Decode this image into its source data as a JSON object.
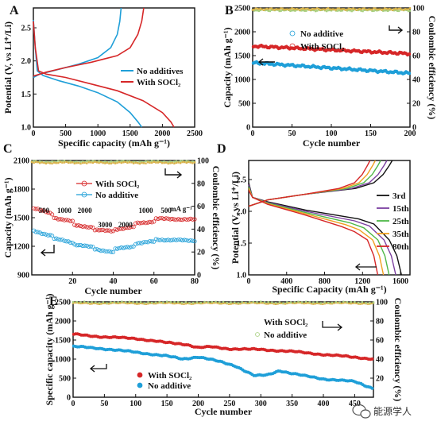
{
  "colors": {
    "red": "#d62728",
    "blue": "#1f9fd8",
    "eff": "#d9b24a",
    "eff_green": "#8ccf5a",
    "black": "#111111",
    "purple": "#7b3fa0",
    "green": "#4fb848",
    "orange": "#f0a020"
  },
  "watermark": {
    "icon": "wechat-icon",
    "text": "能源学人"
  },
  "chart_data": [
    {
      "panel": "A",
      "type": "line",
      "xlabel": "Specific capacity (mAh g⁻¹)",
      "ylabel": "Potential (V, vs Li⁺/Li)",
      "xlim": [
        0,
        2500
      ],
      "ylim": [
        1.0,
        2.8
      ],
      "xticks": [
        0,
        500,
        1000,
        1500,
        2000,
        2500
      ],
      "yticks": [
        1.0,
        1.5,
        2.0,
        2.5
      ],
      "legend": "right",
      "series": [
        {
          "name": "No additives",
          "color": "#1f9fd8",
          "discharge": [
            [
              0,
              2.62
            ],
            [
              30,
              2.2
            ],
            [
              60,
              1.85
            ],
            [
              150,
              1.78
            ],
            [
              400,
              1.7
            ],
            [
              700,
              1.62
            ],
            [
              1000,
              1.52
            ],
            [
              1300,
              1.38
            ],
            [
              1500,
              1.22
            ],
            [
              1620,
              1.08
            ],
            [
              1680,
              1.0
            ]
          ],
          "charge": [
            [
              0,
              1.75
            ],
            [
              100,
              1.8
            ],
            [
              300,
              1.85
            ],
            [
              700,
              1.95
            ],
            [
              1000,
              2.05
            ],
            [
              1200,
              2.2
            ],
            [
              1300,
              2.4
            ],
            [
              1340,
              2.6
            ],
            [
              1360,
              2.8
            ]
          ]
        },
        {
          "name": "With SOCl₂",
          "color": "#d62728",
          "discharge": [
            [
              0,
              2.6
            ],
            [
              30,
              2.2
            ],
            [
              80,
              1.85
            ],
            [
              200,
              1.8
            ],
            [
              500,
              1.75
            ],
            [
              900,
              1.65
            ],
            [
              1300,
              1.55
            ],
            [
              1700,
              1.4
            ],
            [
              2000,
              1.22
            ],
            [
              2130,
              1.08
            ],
            [
              2180,
              1.0
            ]
          ],
          "charge": [
            [
              0,
              1.77
            ],
            [
              200,
              1.83
            ],
            [
              500,
              1.9
            ],
            [
              900,
              1.98
            ],
            [
              1300,
              2.08
            ],
            [
              1500,
              2.2
            ],
            [
              1620,
              2.4
            ],
            [
              1680,
              2.6
            ],
            [
              1710,
              2.8
            ]
          ]
        }
      ]
    },
    {
      "panel": "B",
      "type": "scatter",
      "xlabel": "Cycle number",
      "ylabel": "Capacity (mAh g⁻¹)",
      "ylabel_right": "Coulombic efficiency (%)",
      "xlim": [
        0,
        200
      ],
      "ylim": [
        0,
        2500
      ],
      "ylim_right": [
        0,
        100
      ],
      "xticks": [
        0,
        50,
        100,
        150,
        200
      ],
      "yticks": [
        0,
        500,
        1000,
        1500,
        2000,
        2500
      ],
      "yticks_right": [
        0,
        20,
        40,
        60,
        80,
        100
      ],
      "legend": "center-right",
      "series": [
        {
          "name": "No additive",
          "color": "#1f9fd8",
          "capacity_start": 1350,
          "capacity_end": 1130,
          "efficiency": 98
        },
        {
          "name": "With SOCl₂",
          "color": "#d62728",
          "capacity_start": 1700,
          "capacity_end": 1540,
          "efficiency": 99
        }
      ]
    },
    {
      "panel": "C",
      "type": "scatter",
      "xlabel": "Cycle number",
      "ylabel": "Capacity (mAh g⁻¹)",
      "ylabel_right": "Coulombic efficiency (%)",
      "xlim": [
        0,
        80
      ],
      "ylim": [
        900,
        2100
      ],
      "ylim_right": [
        0,
        100
      ],
      "xticks": [
        20,
        40,
        60,
        80
      ],
      "yticks": [
        900,
        1200,
        1500,
        1800,
        2100
      ],
      "yticks_right": [
        0,
        20,
        40,
        60,
        80,
        100
      ],
      "legend": "center",
      "rate_unit": "mA g⁻¹",
      "rates": [
        {
          "label": "500",
          "x": 5
        },
        {
          "label": "1000",
          "x": 15
        },
        {
          "label": "2000",
          "x": 25
        },
        {
          "label": "3000",
          "x": 35
        },
        {
          "label": "2000",
          "x": 45
        },
        {
          "label": "1000",
          "x": 55
        },
        {
          "label": "500",
          "x": 65
        }
      ],
      "series": [
        {
          "name": "With SOCl₂",
          "color": "#d62728",
          "values": [
            [
              1,
              1600
            ],
            [
              10,
              1540
            ],
            [
              11,
              1500
            ],
            [
              20,
              1460
            ],
            [
              21,
              1420
            ],
            [
              30,
              1400
            ],
            [
              31,
              1370
            ],
            [
              40,
              1360
            ],
            [
              41,
              1380
            ],
            [
              50,
              1400
            ],
            [
              51,
              1440
            ],
            [
              60,
              1460
            ],
            [
              61,
              1490
            ],
            [
              80,
              1480
            ]
          ]
        },
        {
          "name": "No additive",
          "color": "#1f9fd8",
          "values": [
            [
              1,
              1360
            ],
            [
              10,
              1310
            ],
            [
              11,
              1280
            ],
            [
              20,
              1240
            ],
            [
              21,
              1220
            ],
            [
              30,
              1190
            ],
            [
              31,
              1170
            ],
            [
              40,
              1140
            ],
            [
              41,
              1170
            ],
            [
              50,
              1200
            ],
            [
              51,
              1230
            ],
            [
              60,
              1250
            ],
            [
              61,
              1270
            ],
            [
              80,
              1260
            ]
          ]
        }
      ]
    },
    {
      "panel": "D",
      "type": "line",
      "xlabel": "Specific Capacity (mAh g⁻¹)",
      "ylabel": "Potential (V, vs Li⁺/Li)",
      "xlim": [
        0,
        1700
      ],
      "ylim": [
        1.0,
        2.8
      ],
      "xticks": [
        0,
        400,
        800,
        1200,
        1600
      ],
      "yticks": [
        1.0,
        1.5,
        2.0,
        2.5
      ],
      "legend": "right",
      "series": [
        {
          "name": "3rd",
          "color": "#111111",
          "end": 1610
        },
        {
          "name": "15th",
          "color": "#7b3fa0",
          "end": 1550
        },
        {
          "name": "25th",
          "color": "#4fb848",
          "end": 1480
        },
        {
          "name": "35th",
          "color": "#f0a020",
          "end": 1420
        },
        {
          "name": "80th",
          "color": "#d62728",
          "end": 1360
        }
      ]
    },
    {
      "panel": "E",
      "type": "scatter",
      "xlabel": "Cycle number",
      "ylabel": "Specific capacity (mAh g⁻¹)",
      "ylabel_right": "Coulombic efficiency (%)",
      "xlim": [
        0,
        480
      ],
      "ylim": [
        0,
        2500
      ],
      "ylim_right": [
        0,
        100
      ],
      "xticks": [
        0,
        50,
        100,
        150,
        200,
        250,
        300,
        350,
        400,
        450
      ],
      "yticks": [
        0,
        500,
        1000,
        1500,
        2000,
        2500
      ],
      "yticks_right": [
        20,
        40,
        60,
        80,
        100
      ],
      "legend": "center-left",
      "series": [
        {
          "name": "With SOCl₂",
          "color": "#d62728",
          "values": [
            [
              1,
              1650
            ],
            [
              50,
              1580
            ],
            [
              100,
              1540
            ],
            [
              150,
              1430
            ],
            [
              180,
              1390
            ],
            [
              200,
              1300
            ],
            [
              220,
              1320
            ],
            [
              250,
              1270
            ],
            [
              300,
              1250
            ],
            [
              350,
              1200
            ],
            [
              400,
              1120
            ],
            [
              450,
              1050
            ],
            [
              480,
              1000
            ]
          ]
        },
        {
          "name": "No additive",
          "color": "#1f9fd8",
          "values": [
            [
              1,
              1330
            ],
            [
              50,
              1270
            ],
            [
              100,
              1180
            ],
            [
              150,
              1080
            ],
            [
              175,
              1000
            ],
            [
              200,
              1060
            ],
            [
              230,
              950
            ],
            [
              260,
              820
            ],
            [
              290,
              560
            ],
            [
              310,
              580
            ],
            [
              330,
              700
            ],
            [
              345,
              640
            ],
            [
              370,
              560
            ],
            [
              400,
              480
            ],
            [
              450,
              410
            ],
            [
              480,
              230
            ]
          ]
        }
      ]
    }
  ]
}
